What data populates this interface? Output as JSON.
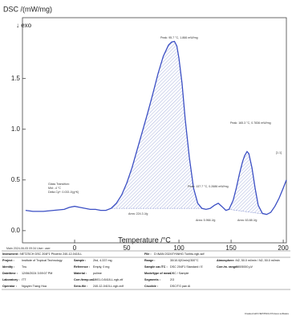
{
  "chart_data": {
    "type": "line",
    "title": "DSC /(mW/mg)",
    "subtitle": "↓ exo",
    "x_label": "Temperature /°C",
    "x": [
      -47,
      -40,
      -30,
      -20,
      -10,
      -5,
      0,
      5,
      10,
      15,
      20,
      25,
      30,
      35,
      40,
      45,
      50,
      55,
      60,
      65,
      70,
      75,
      80,
      85,
      90,
      93,
      95.7,
      98,
      100,
      103,
      106,
      110,
      114,
      118,
      122,
      126,
      130,
      134,
      137.7,
      141,
      145,
      148,
      152,
      155,
      158,
      161,
      163,
      165.3,
      167,
      170,
      173,
      176,
      180,
      184,
      188,
      192,
      196,
      200,
      203
    ],
    "series": [
      {
        "color": "#3b4fc4",
        "values": [
          0.2,
          0.19,
          0.19,
          0.2,
          0.21,
          0.23,
          0.24,
          0.23,
          0.22,
          0.21,
          0.21,
          0.2,
          0.2,
          0.22,
          0.27,
          0.35,
          0.47,
          0.62,
          0.8,
          0.98,
          1.16,
          1.35,
          1.55,
          1.72,
          1.83,
          1.86,
          1.866,
          1.82,
          1.7,
          1.45,
          1.1,
          0.72,
          0.42,
          0.27,
          0.22,
          0.21,
          0.22,
          0.25,
          0.27,
          0.24,
          0.2,
          0.21,
          0.3,
          0.42,
          0.56,
          0.68,
          0.74,
          0.78,
          0.76,
          0.62,
          0.42,
          0.25,
          0.17,
          0.16,
          0.18,
          0.24,
          0.32,
          0.42,
          0.5
        ]
      }
    ],
    "xlim": [
      -50,
      203
    ],
    "xticks": [
      0,
      50,
      100,
      150,
      200
    ],
    "ylim": [
      -0.12,
      2.1
    ],
    "yticks": [
      {
        "value": 0,
        "label": "0.0"
      },
      0.5,
      {
        "value": 1,
        "label": "1.0"
      },
      1.5
    ],
    "annotations": [
      "Glass Transition:",
      "Mid: -4 °C",
      "Delta Cp*: 0.033 J/(g*K)",
      "Peak: 95.7 °C, 1.866 mW/mg",
      "Area: 224.3 J/g",
      "Peak: 137.7 °C, 0.2686 mW/mg",
      "Peak: 165.3 °C, 0.7836 mW/mg",
      "Area: 5.966 J/g",
      "Area: 63.88 J/g",
      "[1.1]"
    ]
  },
  "header": {
    "main": "Main  2024-06-05 09:34  User: user"
  },
  "table": {
    "rows": [
      [
        {
          "label": "Instrument :",
          "value": "NETZSCH DSC 204F1 Phoenix 240-12-0415-L"
        },
        {
          "label": "File :",
          "value": "D:\\NAN 2024\\TH\\NHG Tunhtu.ngb-sdf"
        }
      ],
      [
        {
          "label": "Project :",
          "value": "Institute of Tropical Technology"
        },
        {
          "label": "Sample :",
          "value": "2hd, 4.337 mg"
        },
        {
          "label": "Range :",
          "value": "30/10.0(K/min)/300°C"
        },
        {
          "label": "Atmosphere :",
          "value": "N2, 50.0 ml/min / N2, 50.0 ml/min"
        }
      ],
      [
        {
          "label": "Identity :",
          "value": "Tnu"
        },
        {
          "label": "Reference :",
          "value": "Empty, 0 mg"
        },
        {
          "label": "Sample car./TC :",
          "value": "DSC 204F1 Standard / E"
        },
        {
          "label": "Corr./m. range :",
          "value": "500/5000 µV"
        }
      ],
      [
        {
          "label": "Date/time :",
          "value": "12/06/2024 3:59:07 PM"
        },
        {
          "label": "Material :",
          "value": "polime"
        },
        {
          "label": "Mode/type of meas. :",
          "value": "DSC / Sample"
        }
      ],
      [
        {
          "label": "Laboratory :",
          "value": "ITT"
        },
        {
          "label": "Corr./temp.cal. :",
          "value": "10/01-0.8418-L.ngb-xtf"
        },
        {
          "label": "Segments :",
          "value": "2/3"
        }
      ],
      [
        {
          "label": "Operator :",
          "value": "Nguyen Trang Hoa"
        },
        {
          "label": "Sens.file :",
          "value": "240-12-0415-L.ngb-edf"
        },
        {
          "label": "Crucible :",
          "value": "DSC/TG pan Al"
        }
      ]
    ]
  },
  "footer": "Created with NETZSCH Proteus software"
}
